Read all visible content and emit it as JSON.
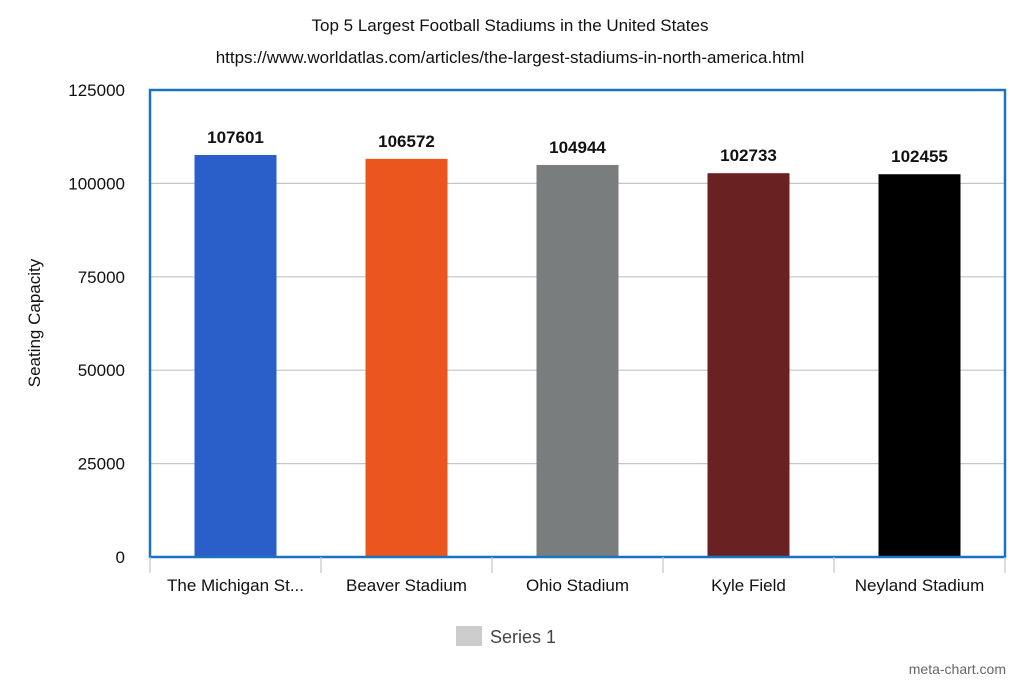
{
  "chart_data": {
    "type": "bar",
    "title": "Top 5 Largest Football Stadiums in the United States",
    "subtitle": "https://www.worldatlas.com/articles/the-largest-stadiums-in-north-america.html",
    "xlabel": "",
    "ylabel": "Seating Capacity",
    "ylim": [
      0,
      125000
    ],
    "yticks": [
      0,
      25000,
      50000,
      75000,
      100000,
      125000
    ],
    "grid": true,
    "categories": [
      "The Michigan St...",
      "Beaver Stadium",
      "Ohio Stadium",
      "Kyle Field",
      "Neyland Stadium"
    ],
    "values": [
      107601,
      106572,
      104944,
      102733,
      102455
    ],
    "data_labels": [
      "107601",
      "106572",
      "104944",
      "102733",
      "102455"
    ],
    "colors": [
      "#2a5fc9",
      "#ea561d",
      "#7a7d7d",
      "#6a2122",
      "#000000"
    ],
    "legend": {
      "entries": [
        {
          "label": "Series 1",
          "color": "#cccccc"
        }
      ],
      "placement": "bottom"
    },
    "watermark": "meta-chart.com"
  }
}
